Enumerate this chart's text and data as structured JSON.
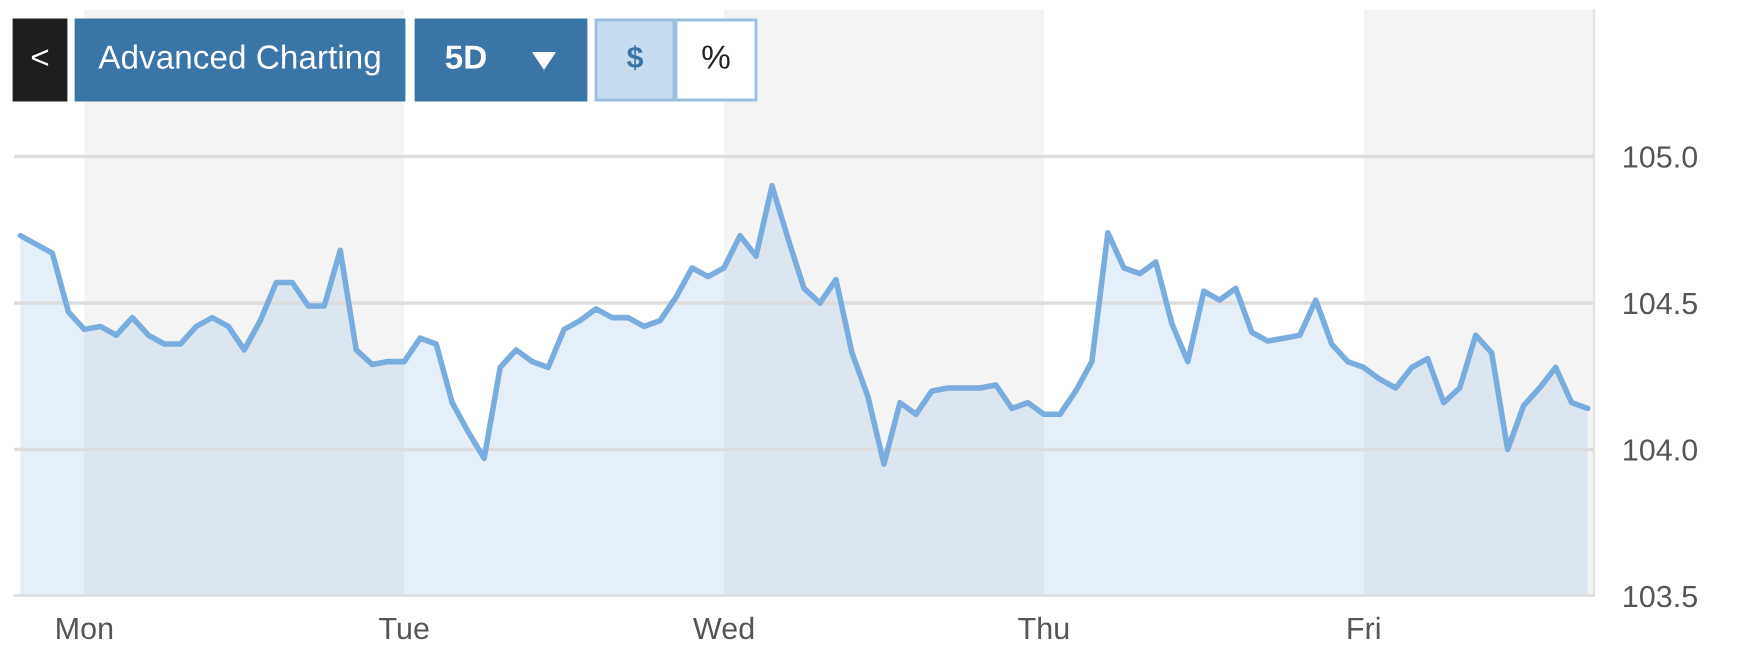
{
  "chart_data": {
    "type": "area",
    "annotations": [
      "<",
      "Advanced Charting",
      "5D",
      "$",
      "%"
    ],
    "categories": [
      null,
      null,
      null,
      null,
      "Mon",
      null,
      null,
      null,
      null,
      null,
      null,
      null,
      null,
      null,
      null,
      null,
      null,
      null,
      null,
      null,
      null,
      null,
      null,
      null,
      "Tue",
      null,
      null,
      null,
      null,
      null,
      null,
      null,
      null,
      null,
      null,
      null,
      null,
      null,
      null,
      null,
      null,
      null,
      null,
      null,
      "Wed",
      null,
      null,
      null,
      null,
      null,
      null,
      null,
      null,
      null,
      null,
      null,
      null,
      null,
      null,
      null,
      null,
      null,
      null,
      null,
      "Thu",
      null,
      null,
      null,
      null,
      null,
      null,
      null,
      null,
      null,
      null,
      null,
      null,
      null,
      null,
      null,
      null,
      null,
      null,
      null,
      "Fri",
      null,
      null,
      null,
      null,
      null,
      null,
      null,
      null,
      null,
      null,
      null,
      null,
      null,
      null
    ],
    "series": [
      {
        "color": "#7aaddf",
        "values": [
          104.73,
          104.7,
          104.67,
          104.47,
          104.41,
          104.42,
          104.39,
          104.45,
          104.39,
          104.36,
          104.36,
          104.42,
          104.45,
          104.42,
          104.34,
          104.44,
          104.57,
          104.57,
          104.49,
          104.49,
          104.68,
          104.34,
          104.29,
          104.3,
          104.3,
          104.38,
          104.36,
          104.16,
          104.06,
          103.97,
          104.28,
          104.34,
          104.3,
          104.28,
          104.41,
          104.44,
          104.48,
          104.45,
          104.45,
          104.42,
          104.44,
          104.52,
          104.62,
          104.59,
          104.62,
          104.73,
          104.66,
          104.9,
          104.72,
          104.55,
          104.5,
          104.58,
          104.33,
          104.18,
          103.95,
          104.16,
          104.12,
          104.2,
          104.21,
          104.21,
          104.21,
          104.22,
          104.14,
          104.16,
          104.12,
          104.12,
          104.2,
          104.3,
          104.74,
          104.62,
          104.6,
          104.64,
          104.43,
          104.3,
          104.54,
          104.51,
          104.55,
          104.4,
          104.37,
          104.38,
          104.39,
          104.51,
          104.36,
          104.3,
          104.28,
          104.24,
          104.21,
          104.28,
          104.31,
          104.16,
          104.21,
          104.39,
          104.33,
          104.0,
          104.15,
          104.21,
          104.28,
          104.16,
          104.14
        ]
      }
    ],
    "ylim": [
      103.5,
      105.5
    ],
    "yticks": [
      {
        "value": 103.5,
        "label": "103.5"
      },
      {
        "value": 104,
        "label": "104.0"
      },
      {
        "value": 104.5,
        "label": "104.5"
      },
      {
        "value": 105,
        "label": "105.0"
      }
    ],
    "grid": "y"
  }
}
